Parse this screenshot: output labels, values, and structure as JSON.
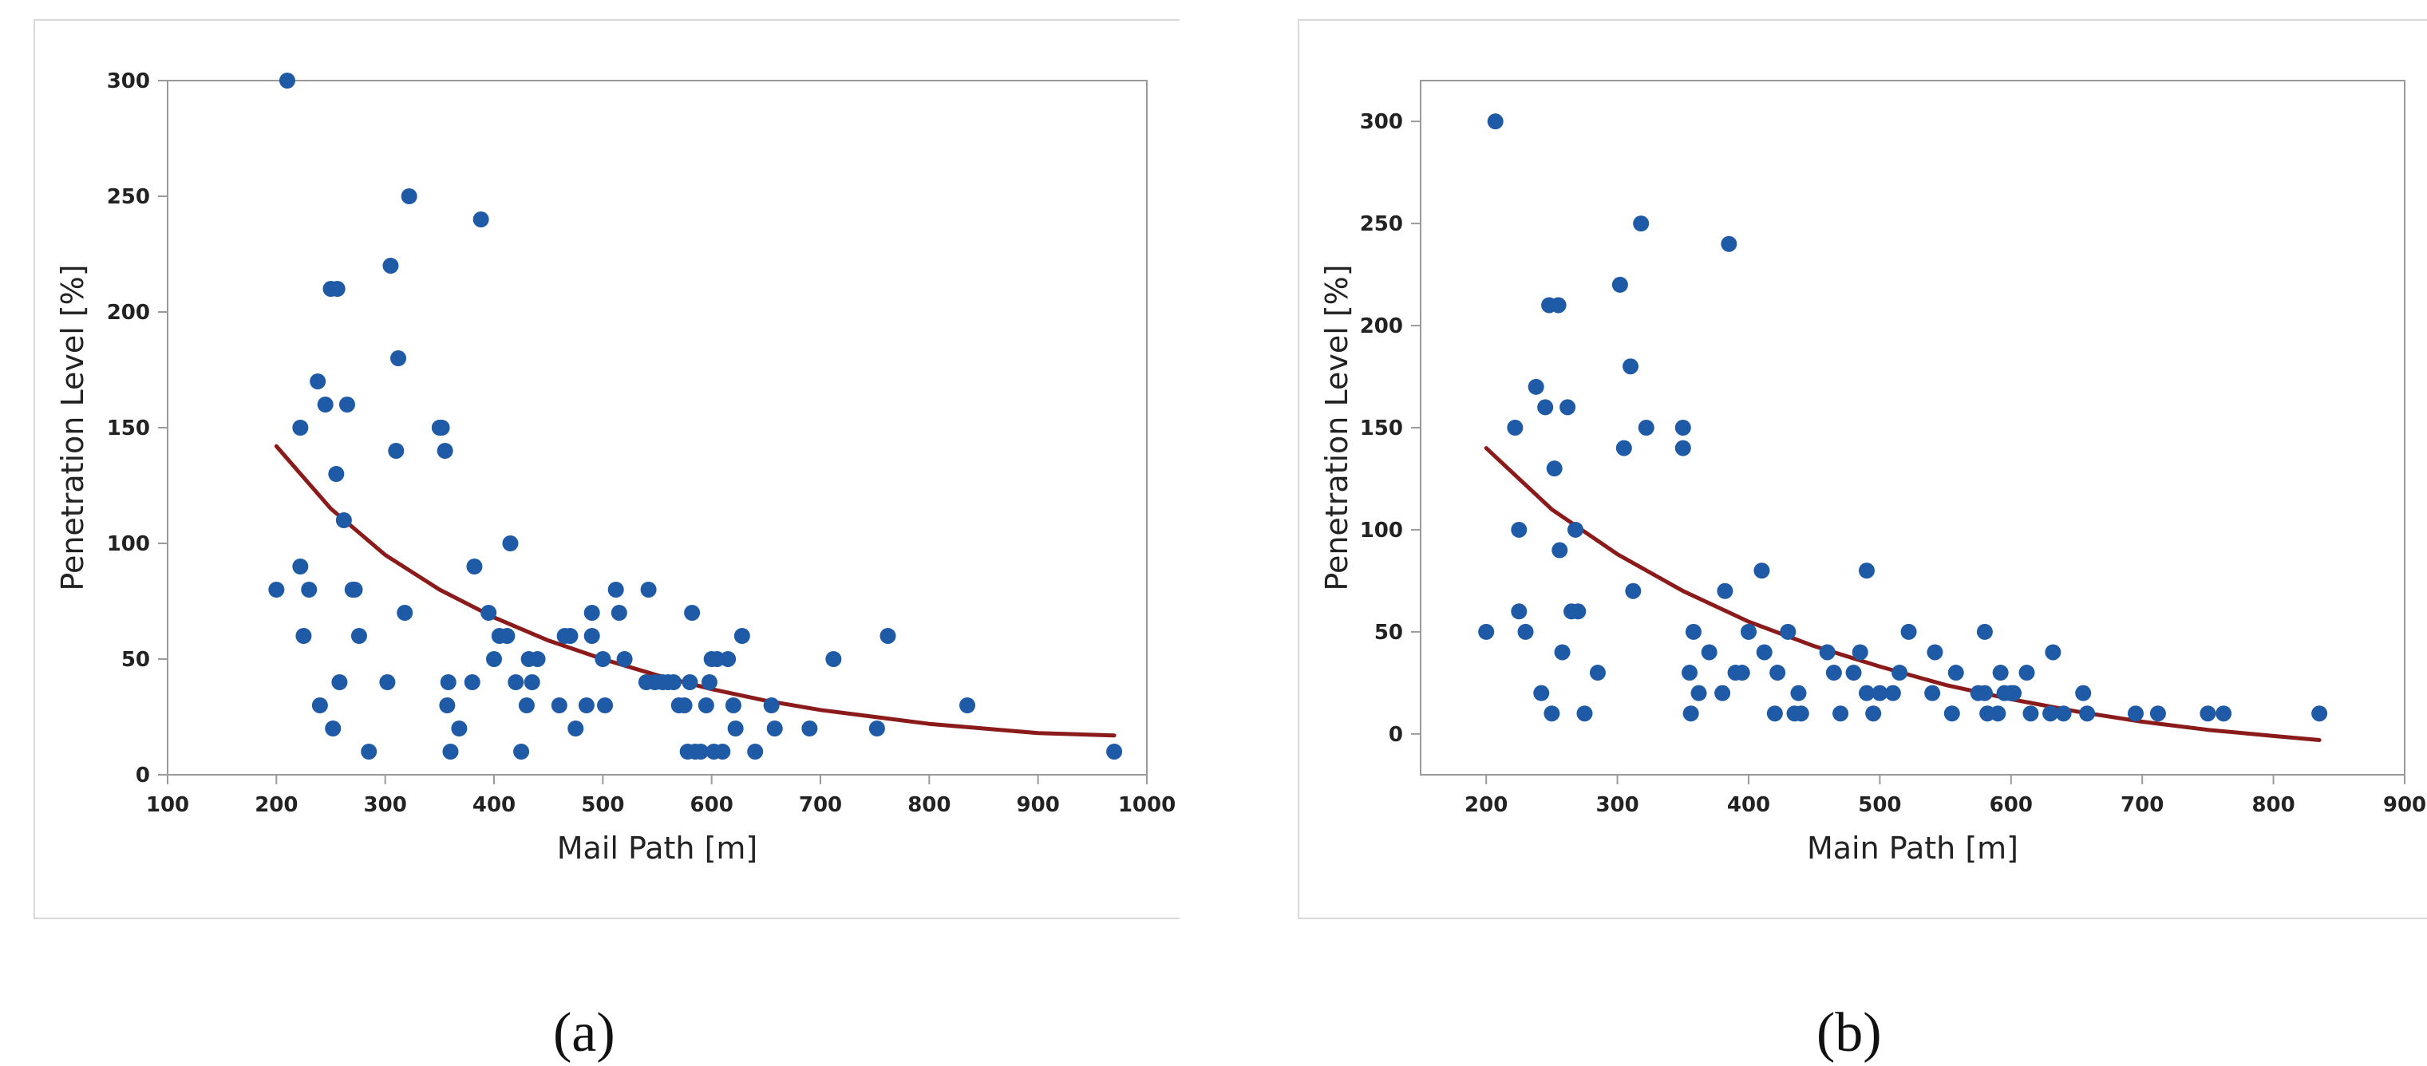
{
  "colors": {
    "point": "#1f5aa6",
    "fit": "#8b1a1a",
    "axis": "#9a9a9a",
    "text": "#222222"
  },
  "chart_data": [
    {
      "type": "scatter",
      "caption": "(a)",
      "xlabel": "Mail Path [m]",
      "ylabel": "Penetration Level [%]",
      "xlim": [
        100,
        1000
      ],
      "ylim": [
        0,
        300
      ],
      "xticks": [
        100,
        200,
        300,
        400,
        500,
        600,
        700,
        800,
        900,
        1000
      ],
      "yticks": [
        0,
        50,
        100,
        150,
        200,
        250,
        300
      ],
      "grid": false,
      "series": [
        {
          "name": "observations",
          "kind": "points",
          "x": [
            200,
            210,
            222,
            222,
            225,
            230,
            238,
            240,
            245,
            250,
            252,
            255,
            256,
            258,
            262,
            265,
            270,
            272,
            276,
            285,
            302,
            305,
            310,
            312,
            318,
            322,
            350,
            352,
            355,
            357,
            358,
            360,
            368,
            380,
            382,
            388,
            395,
            400,
            405,
            412,
            415,
            420,
            425,
            430,
            432,
            435,
            440,
            460,
            465,
            470,
            475,
            485,
            490,
            490,
            500,
            502,
            512,
            515,
            520,
            540,
            542,
            548,
            555,
            560,
            565,
            570,
            575,
            578,
            580,
            582,
            585,
            590,
            595,
            598,
            600,
            602,
            605,
            610,
            615,
            620,
            622,
            628,
            640,
            655,
            658,
            690,
            712,
            752,
            762,
            835,
            970
          ],
          "y": [
            80,
            300,
            150,
            90,
            60,
            80,
            170,
            30,
            160,
            210,
            20,
            130,
            210,
            40,
            110,
            160,
            80,
            80,
            60,
            10,
            40,
            220,
            140,
            180,
            70,
            250,
            150,
            150,
            140,
            30,
            40,
            10,
            20,
            40,
            90,
            240,
            70,
            50,
            60,
            60,
            100,
            40,
            10,
            30,
            50,
            40,
            50,
            30,
            60,
            60,
            20,
            30,
            60,
            70,
            50,
            30,
            80,
            70,
            50,
            40,
            80,
            40,
            40,
            40,
            40,
            30,
            30,
            10,
            40,
            70,
            10,
            10,
            30,
            40,
            50,
            10,
            50,
            10,
            50,
            30,
            20,
            60,
            10,
            30,
            20,
            20,
            50,
            20,
            60,
            30,
            10
          ]
        },
        {
          "name": "fitted curve",
          "kind": "line",
          "x": [
            200,
            250,
            300,
            350,
            400,
            450,
            500,
            550,
            600,
            650,
            700,
            750,
            800,
            850,
            900,
            970
          ],
          "y": [
            142,
            115,
            95,
            80,
            68,
            58,
            50,
            43,
            37,
            32,
            28,
            25,
            22,
            20,
            18,
            17
          ]
        }
      ]
    },
    {
      "type": "scatter",
      "caption": "(b)",
      "xlabel": "Main Path [m]",
      "ylabel": "Penetration Level [%]",
      "xlim": [
        150,
        900
      ],
      "ylim": [
        -20,
        320
      ],
      "xticks": [
        200,
        300,
        400,
        500,
        600,
        700,
        800,
        900
      ],
      "yticks": [
        0,
        50,
        100,
        150,
        200,
        250,
        300
      ],
      "grid": false,
      "series": [
        {
          "name": "observations",
          "kind": "points",
          "x": [
            200,
            207,
            222,
            225,
            225,
            230,
            238,
            242,
            245,
            248,
            250,
            252,
            255,
            256,
            258,
            262,
            265,
            268,
            270,
            275,
            285,
            302,
            305,
            310,
            312,
            318,
            322,
            350,
            350,
            355,
            356,
            358,
            362,
            370,
            380,
            382,
            385,
            390,
            395,
            400,
            410,
            412,
            420,
            422,
            430,
            435,
            438,
            440,
            460,
            465,
            470,
            480,
            485,
            490,
            490,
            495,
            500,
            510,
            515,
            522,
            540,
            542,
            555,
            558,
            575,
            580,
            580,
            582,
            590,
            592,
            595,
            600,
            602,
            612,
            615,
            630,
            632,
            640,
            655,
            658,
            695,
            712,
            750,
            762,
            835
          ],
          "y": [
            50,
            300,
            150,
            60,
            100,
            50,
            170,
            20,
            160,
            210,
            10,
            130,
            210,
            90,
            40,
            160,
            60,
            100,
            60,
            10,
            30,
            220,
            140,
            180,
            70,
            250,
            150,
            150,
            140,
            30,
            10,
            50,
            20,
            40,
            20,
            70,
            240,
            30,
            30,
            50,
            80,
            40,
            10,
            30,
            50,
            10,
            20,
            10,
            40,
            30,
            10,
            30,
            40,
            80,
            20,
            10,
            20,
            20,
            30,
            50,
            20,
            40,
            10,
            30,
            20,
            20,
            50,
            10,
            10,
            30,
            20,
            20,
            20,
            30,
            10,
            10,
            40,
            10,
            20,
            10,
            10,
            10,
            10,
            10,
            10
          ]
        },
        {
          "name": "fitted curve",
          "kind": "line",
          "x": [
            200,
            250,
            300,
            350,
            400,
            450,
            500,
            550,
            600,
            650,
            700,
            750,
            800,
            835
          ],
          "y": [
            140,
            110,
            88,
            70,
            55,
            43,
            33,
            24,
            17,
            11,
            6,
            2,
            -1,
            -3
          ]
        }
      ]
    }
  ],
  "captions": {
    "a": "(a)",
    "b": "(b)"
  }
}
